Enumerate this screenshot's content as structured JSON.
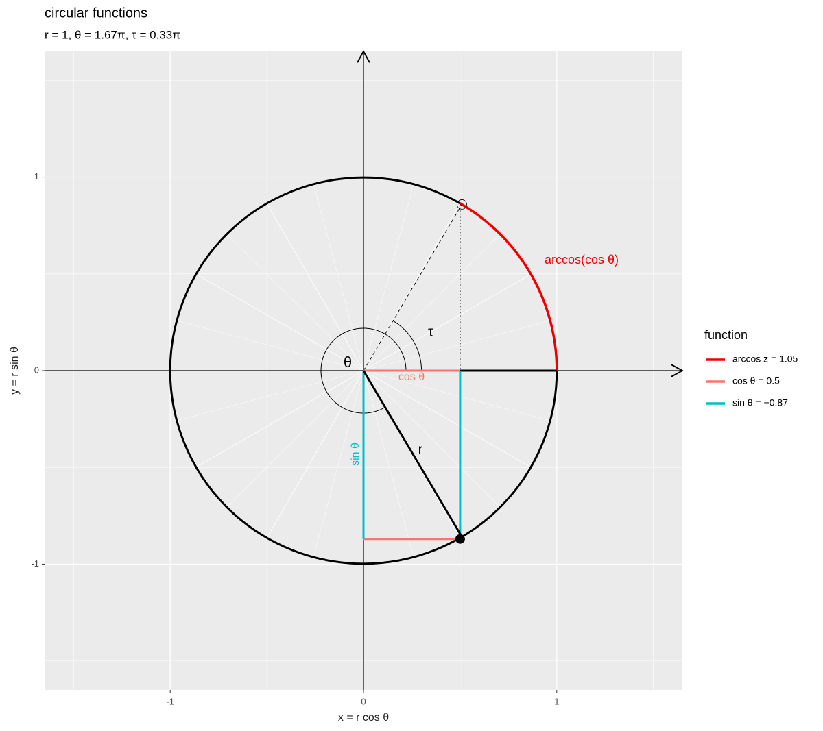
{
  "chart_data": {
    "type": "circular",
    "title": "circular functions",
    "subtitle": "r = 1, θ = 1.67π, τ = 0.33π",
    "x_label": "x = r cos θ",
    "y_label": "y = r sin θ",
    "r": 1,
    "theta_pi": 1.67,
    "tau_pi": 0.33,
    "xlim": [
      -1.65,
      1.65
    ],
    "ylim": [
      -1.65,
      1.65
    ],
    "xticks": [
      -1,
      0,
      1
    ],
    "yticks": [
      -1,
      0,
      1
    ],
    "grid": true,
    "legend_title": "function",
    "legend_position": "right",
    "series": [
      {
        "name": "arccos z = 1.05",
        "color": "#ee0000",
        "values": [
          1.05
        ]
      },
      {
        "name": "cos θ = 0.5",
        "color": "#f8766d",
        "values": [
          0.5
        ]
      },
      {
        "name": "sin θ = −0.87",
        "color": "#00bfc4",
        "values": [
          -0.87
        ]
      }
    ],
    "annotations": {
      "arc": "arccos(cos θ)",
      "cos": "cos θ",
      "sin": "sin θ",
      "r": "r",
      "theta": "θ",
      "tau": "τ"
    }
  }
}
